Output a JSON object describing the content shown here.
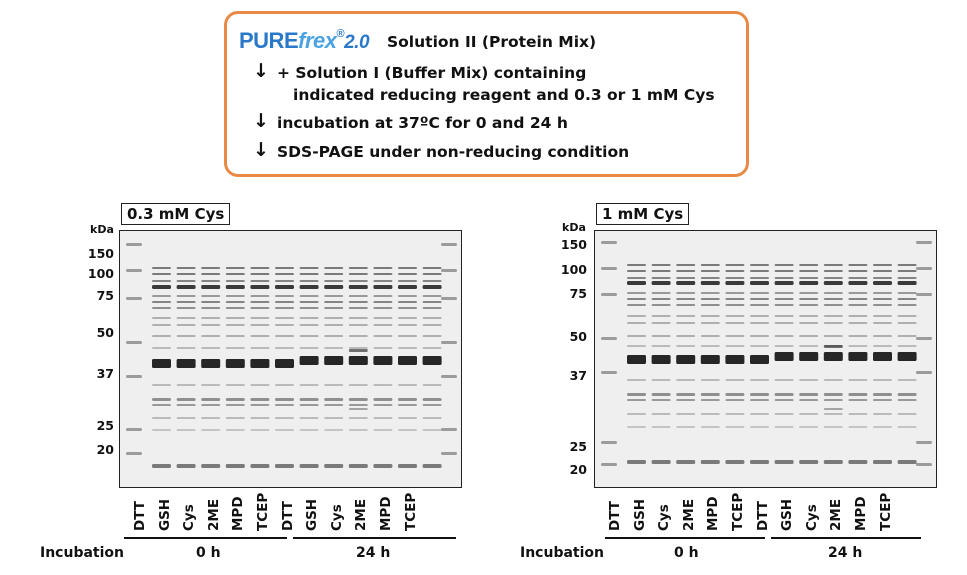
{
  "protocol": {
    "logo_pure": "PURE",
    "logo_frex": "frex",
    "logo_reg": "®",
    "logo_version": "2.0",
    "step0": "Solution II (Protein Mix)",
    "step1_line1": "+ Solution I (Buffer Mix) containing",
    "step1_line2": "indicated reducing reagent and 0.3 or 1 mM Cys",
    "step2": "incubation at 37ºC for 0 and 24 h",
    "step3": "SDS-PAGE under non-reducing condition",
    "arrow_glyph": "↓"
  },
  "gels": [
    {
      "label": "0.3 mM Cys",
      "kda_label": "kDa",
      "markers": [
        "150",
        "100",
        "75",
        "50",
        "37",
        "25",
        "20"
      ],
      "lanes": [
        "DTT",
        "GSH",
        "Cys",
        "2ME",
        "MPD",
        "TCEP",
        "DTT",
        "GSH",
        "Cys",
        "2ME",
        "MPD",
        "TCEP"
      ],
      "incubation_label": "Incubation",
      "groups": [
        "0 h",
        "24 h"
      ]
    },
    {
      "label": "1 mM Cys",
      "kda_label": "kDa",
      "markers": [
        "150",
        "100",
        "75",
        "50",
        "37",
        "25",
        "20"
      ],
      "lanes": [
        "DTT",
        "GSH",
        "Cys",
        "2ME",
        "MPD",
        "TCEP",
        "DTT",
        "GSH",
        "Cys",
        "2ME",
        "MPD",
        "TCEP"
      ],
      "incubation_label": "Incubation",
      "groups": [
        "0 h",
        "24 h"
      ]
    }
  ],
  "colors": {
    "box_border": "#e88a45",
    "logo_blue": "#2a78c8",
    "logo_light_blue": "#4aa3e0"
  }
}
